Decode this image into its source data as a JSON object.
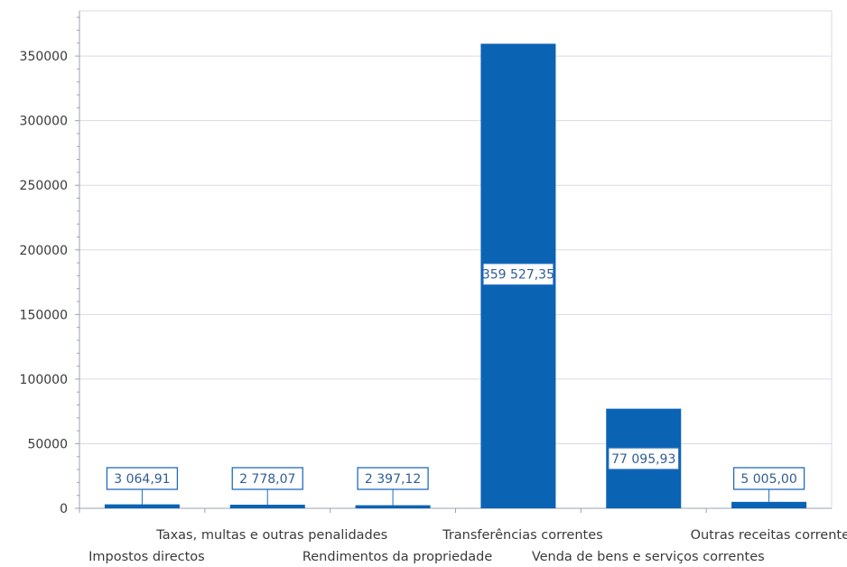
{
  "colors": {
    "bar": "#0b63b3",
    "grid": "#d6dbe6",
    "axis": "#9aa3b3",
    "label_border": "#1f6dbf",
    "label_text": "#2f5e97"
  },
  "chart_data": {
    "type": "bar",
    "title": "",
    "xlabel": "",
    "ylabel": "",
    "categories": [
      "Impostos directos",
      "Taxas, multas e outras penalidades",
      "Rendimentos da propriedade",
      "Transferências correntes",
      "Venda de bens e serviços correntes",
      "Outras receitas correntes"
    ],
    "values": [
      3064.91,
      2778.07,
      2397.12,
      359527.35,
      77095.93,
      5005.0
    ],
    "data_labels": [
      "3 064,91",
      "2 778,07",
      "2 397,12",
      "359 527,35",
      "77 095,93",
      "5 005,00"
    ],
    "ylim": [
      0,
      385000
    ],
    "yticks": [
      0,
      50000,
      100000,
      150000,
      200000,
      250000,
      300000,
      350000
    ],
    "ytick_labels": [
      "0",
      "50000",
      "100000",
      "150000",
      "200000",
      "250000",
      "300000",
      "350000"
    ],
    "grid": true,
    "legend": "none"
  }
}
